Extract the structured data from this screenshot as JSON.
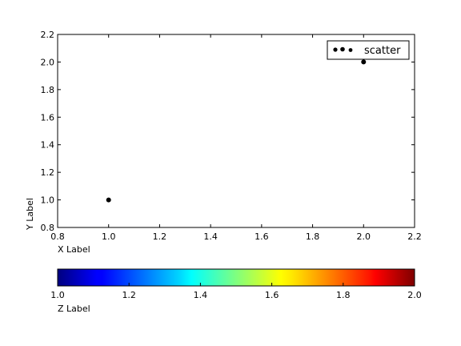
{
  "chart_data": {
    "type": "scatter",
    "xlabel": "X Label",
    "ylabel": "Y Label",
    "xlim": [
      0.8,
      2.2
    ],
    "ylim": [
      0.8,
      2.2
    ],
    "xticks": [
      0.8,
      1.0,
      1.2,
      1.4,
      1.6,
      1.8,
      2.0,
      2.2
    ],
    "yticks": [
      0.8,
      1.0,
      1.2,
      1.4,
      1.6,
      1.8,
      2.0,
      2.2
    ],
    "grid": false,
    "legend": {
      "position": "top-right",
      "entries": [
        "scatter"
      ]
    },
    "series": [
      {
        "name": "scatter",
        "x": [
          1.0,
          2.0
        ],
        "y": [
          1.0,
          2.0
        ],
        "color": "#000000"
      }
    ],
    "colorbar": {
      "label": "Z Label",
      "colormap": "jet",
      "range": [
        1.0,
        2.0
      ],
      "ticks": [
        1.0,
        1.2,
        1.4,
        1.6,
        1.8,
        2.0
      ],
      "orientation": "horizontal"
    }
  }
}
